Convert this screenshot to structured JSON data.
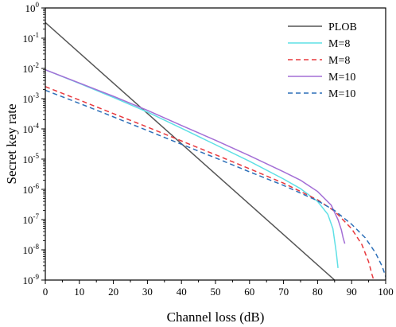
{
  "chart_data": {
    "type": "line",
    "title": "",
    "xlabel": "Channel loss (dB)",
    "ylabel": "Secret key rate",
    "xlim": [
      0,
      100
    ],
    "ylim_log10": [
      -9,
      0
    ],
    "y_scale": "log",
    "x_ticks": [
      0,
      10,
      20,
      30,
      40,
      50,
      60,
      70,
      80,
      90,
      100
    ],
    "y_ticks_log10": [
      0,
      -1,
      -2,
      -3,
      -4,
      -5,
      -6,
      -7,
      -8,
      -9
    ],
    "y_tick_base": "10",
    "legend_position": "top-right",
    "grid": false,
    "series": [
      {
        "name": "PLOB",
        "color": "#555555",
        "dash": "solid",
        "points": [
          [
            0,
            0.33
          ],
          [
            85,
            1e-09
          ]
        ]
      },
      {
        "name": "M=8",
        "color": "#5fe0e6",
        "dash": "solid",
        "points": [
          [
            0,
            0.009
          ],
          [
            10,
            0.0032
          ],
          [
            20,
            0.0011
          ],
          [
            30,
            0.00036
          ],
          [
            40,
            0.000105
          ],
          [
            50,
            3e-05
          ],
          [
            60,
            8.5e-06
          ],
          [
            70,
            2.2e-06
          ],
          [
            75,
            1.05e-06
          ],
          [
            80,
            4e-07
          ],
          [
            83,
            1.5e-07
          ],
          [
            84.5,
            5e-08
          ],
          [
            85.5,
            8e-09
          ],
          [
            86,
            2.5e-09
          ]
        ]
      },
      {
        "name": "M=8",
        "color": "#e8383d",
        "dash": "dashed",
        "points": [
          [
            0,
            0.0025
          ],
          [
            10,
            0.0009
          ],
          [
            20,
            0.00032
          ],
          [
            30,
            0.000115
          ],
          [
            40,
            4e-05
          ],
          [
            50,
            1.4e-05
          ],
          [
            60,
            4.8e-06
          ],
          [
            70,
            1.6e-06
          ],
          [
            80,
            4.5e-07
          ],
          [
            85,
            1.9e-07
          ],
          [
            90,
            5e-08
          ],
          [
            93,
            1.5e-08
          ],
          [
            95,
            4e-09
          ],
          [
            96,
            1.5e-09
          ],
          [
            96.5,
            1e-09
          ]
        ]
      },
      {
        "name": "M=10",
        "color": "#a46fd6",
        "dash": "solid",
        "points": [
          [
            0,
            0.009
          ],
          [
            10,
            0.0033
          ],
          [
            20,
            0.0012
          ],
          [
            30,
            0.00041
          ],
          [
            40,
            0.00013
          ],
          [
            50,
            4.2e-05
          ],
          [
            60,
            1.3e-05
          ],
          [
            70,
            3.8e-06
          ],
          [
            75,
            2e-06
          ],
          [
            80,
            8.5e-07
          ],
          [
            84,
            3e-07
          ],
          [
            86,
            1e-07
          ],
          [
            87,
            4.5e-08
          ],
          [
            87.5,
            2.5e-08
          ],
          [
            88,
            1.6e-08
          ]
        ]
      },
      {
        "name": "M=10",
        "color": "#2c6fb8",
        "dash": "dashed",
        "points": [
          [
            0,
            0.0019
          ],
          [
            10,
            0.0007
          ],
          [
            20,
            0.00025
          ],
          [
            30,
            8.8e-05
          ],
          [
            40,
            3.1e-05
          ],
          [
            50,
            1.1e-05
          ],
          [
            60,
            3.8e-06
          ],
          [
            70,
            1.35e-06
          ],
          [
            80,
            4.2e-07
          ],
          [
            85,
            2e-07
          ],
          [
            90,
            7e-08
          ],
          [
            94,
            2.5e-08
          ],
          [
            97,
            8e-09
          ],
          [
            99,
            2.8e-09
          ],
          [
            100,
            1.3e-09
          ]
        ]
      }
    ]
  }
}
